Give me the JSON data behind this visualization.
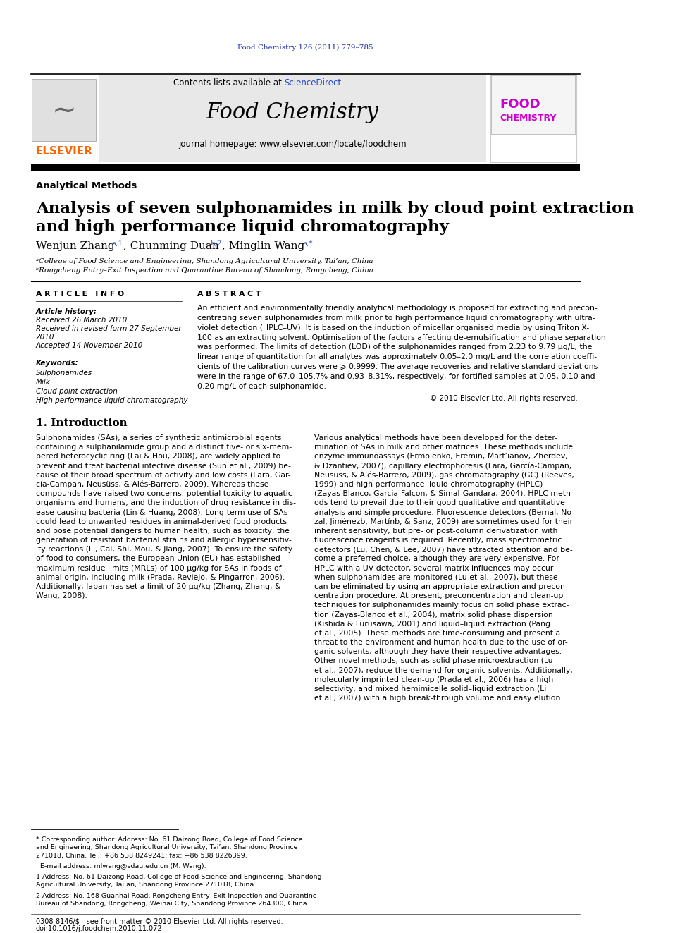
{
  "page_bg": "#ffffff",
  "top_citation": "Food Chemistry 126 (2011) 779–785",
  "top_citation_color": "#2233aa",
  "journal_title": "Food Chemistry",
  "journal_bg": "#e8e8e8",
  "contents_text": "Contents lists available at ",
  "science_direct": "ScienceDirect",
  "science_direct_color": "#2244cc",
  "homepage_text": "journal homepage: www.elsevier.com/locate/foodchem",
  "elsevier_color": "#ff6600",
  "section_label": "Analytical Methods",
  "article_title_line1": "Analysis of seven sulphonamides in milk by cloud point extraction",
  "article_title_line2": "and high performance liquid chromatography",
  "affil_a": "ᵃCollege of Food Science and Engineering, Shandong Agricultural University, Tai’an, China",
  "affil_b": "ᵇRongcheng Entry–Exit Inspection and Quarantine Bureau of Shandong, Rongcheng, China",
  "article_info_header": "A R T I C L E   I N F O",
  "abstract_header": "A B S T R A C T",
  "article_history": "Article history:",
  "received": "Received 26 March 2010",
  "revised": "Received in revised form 27 September",
  "revised2": "2010",
  "accepted": "Accepted 14 November 2010",
  "keywords_label": "Keywords:",
  "keywords": [
    "Sulphonamides",
    "Milk",
    "Cloud point extraction",
    "High performance liquid chromatography"
  ],
  "abstract_text": "An efficient and environmentally friendly analytical methodology is proposed for extracting and precon-\ncentrating seven sulphonamides from milk prior to high performance liquid chromatography with ultra-\nviolet detection (HPLC–UV). It is based on the induction of micellar organised media by using Triton X-\n100 as an extracting solvent. Optimisation of the factors affecting de-emulsification and phase separation\nwas performed. The limits of detection (LOD) of the sulphonamides ranged from 2.23 to 9.79 μg/L, the\nlinear range of quantitation for all analytes was approximately 0.05–2.0 mg/L and the correlation coeffi-\ncients of the calibration curves were ⩾ 0.9999. The average recoveries and relative standard deviations\nwere in the range of 67.0–105.7% and 0.93–8.31%, respectively, for fortified samples at 0.05, 0.10 and\n0.20 mg/L of each sulphonamide.",
  "copyright": "© 2010 Elsevier Ltd. All rights reserved.",
  "intro_header": "1. Introduction",
  "intro_col1": "Sulphonamides (SAs), a series of synthetic antimicrobial agents\ncontaining a sulphanilamide group and a distinct five- or six-mem-\nbered heterocyclic ring (Lai & Hou, 2008), are widely applied to\nprevent and treat bacterial infective disease (Sun et al., 2009) be-\ncause of their broad spectrum of activity and low costs (Lara, Gar-\ncía-Campan, Neusüss, & Alés-Barrero, 2009). Whereas these\ncompounds have raised two concerns: potential toxicity to aquatic\norganisms and humans, and the induction of drug resistance in dis-\nease-causing bacteria (Lin & Huang, 2008). Long-term use of SAs\ncould lead to unwanted residues in animal-derived food products\nand pose potential dangers to human health, such as toxicity, the\ngeneration of resistant bacterial strains and allergic hypersensitiv-\nity reactions (Li, Cai, Shi, Mou, & Jiang, 2007). To ensure the safety\nof food to consumers, the European Union (EU) has established\nmaximum residue limits (MRLs) of 100 μg/kg for SAs in foods of\nanimal origin, including milk (Prada, Reviejo, & Pingarron, 2006).\nAdditionally, Japan has set a limit of 20 μg/kg (Zhang, Zhang, &\nWang, 2008).",
  "intro_col2": "Various analytical methods have been developed for the deter-\nmination of SAs in milk and other matrices. These methods include\nenzyme immunoassays (Ermolenko, Eremin, Mart’ianov, Zherdev,\n& Dzantiev, 2007), capillary electrophoresis (Lara, García-Campan,\nNeusüss, & Alés-Barrero, 2009), gas chromatography (GC) (Reeves,\n1999) and high performance liquid chromatography (HPLC)\n(Zayas-Blanco, Garcia-Falcon, & Simal-Gandara, 2004). HPLC meth-\nods tend to prevail due to their good qualitative and quantitative\nanalysis and simple procedure. Fluorescence detectors (Bernal, No-\nzal, Jiménezb, Martínb, & Sanz, 2009) are sometimes used for their\ninherent sensitivity, but pre- or post-column derivatization with\nfluorescence reagents is required. Recently, mass spectrometric\ndetectors (Lu, Chen, & Lee, 2007) have attracted attention and be-\ncome a preferred choice, although they are very expensive. For\nHPLC with a UV detector, several matrix influences may occur\nwhen sulphonamides are monitored (Lu et al., 2007), but these\ncan be eliminated by using an appropriate extraction and precon-\ncentration procedure. At present, preconcentration and clean-up\ntechniques for sulphonamides mainly focus on solid phase extrac-\ntion (Zayas-Blanco et al., 2004), matrix solid phase dispersion\n(Kishida & Furusawa, 2001) and liquid–liquid extraction (Pang\net al., 2005). These methods are time-consuming and present a\nthreat to the environment and human health due to the use of or-\nganic solvents, although they have their respective advantages.\nOther novel methods, such as solid phase microextraction (Lu\net al., 2007), reduce the demand for organic solvents. Additionally,\nmolecularly imprinted clean-up (Prada et al., 2006) has a high\nselectivity, and mixed hemimicelle solid–liquid extraction (Li\net al., 2007) with a high break-through volume and easy elution",
  "footnote1": "* Corresponding author. Address: No. 61 Daizong Road, College of Food Science\nand Engineering, Shandong Agricultural University, Tai’an, Shandong Province\n271018, China. Tel.: +86 538 8249241; fax: +86 538 8226399.",
  "footnote2": "  E-mail address: mlwang@sdau.edu.cn (M. Wang).",
  "footnote3": "1 Address: No. 61 Daizong Road, College of Food Science and Engineering, Shandong\nAgricultural University, Tai’an, Shandong Province 271018, China.",
  "footnote4": "2 Address: No. 168 Guanhai Road, Rongcheng Entry–Exit Inspection and Quarantine\nBureau of Shandong, Rongcheng, Weihai City, Shandong Province 264300, China.",
  "bottom_line1": "0308-8146/$ - see front matter © 2010 Elsevier Ltd. All rights reserved.",
  "bottom_line2": "doi:10.1016/j.foodchem.2010.11.072"
}
